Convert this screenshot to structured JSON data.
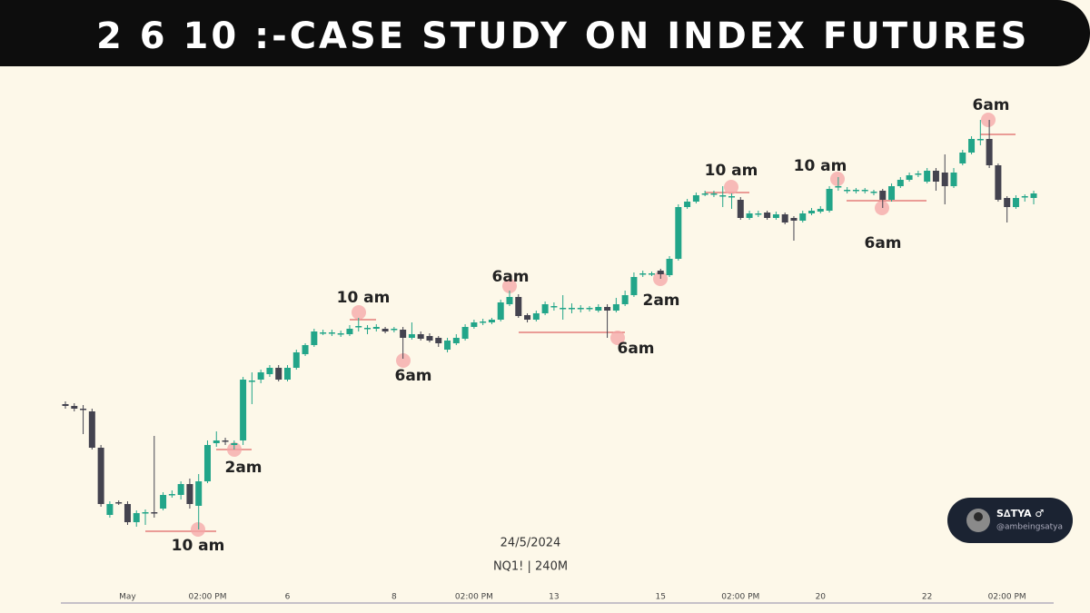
{
  "header": {
    "title": "2 6 10 :-CASE STUDY ON INDEX FUTURES"
  },
  "badge": {
    "name": "S∆TYA ♂",
    "handle": "@ambeingsatya"
  },
  "chart_data": {
    "type": "candlestick",
    "date": "24/5/2024",
    "symbol": "NQ1! | 240M",
    "up_color": "#22a589",
    "down_color": "#44434f",
    "ylim": [
      0,
      600
    ],
    "annotations": [
      "10 am",
      "2am",
      "10 am",
      "6am",
      "6am",
      "6am",
      "2am",
      "10 am",
      "10 am",
      "6am",
      "6am"
    ],
    "categories": [
      null,
      null,
      null,
      null,
      null,
      null,
      null,
      "May",
      null,
      null,
      null,
      null,
      null,
      null,
      null,
      null,
      "02:00 PM",
      null,
      null,
      null,
      null,
      null,
      null,
      null,
      null,
      "6",
      null,
      null,
      null,
      null,
      null,
      null,
      null,
      null,
      null,
      null,
      null,
      "8",
      null,
      null,
      null,
      null,
      null,
      null,
      null,
      null,
      "02:00 PM",
      null,
      null,
      null,
      null,
      null,
      null,
      null,
      null,
      "13",
      null,
      null,
      null,
      null,
      null,
      null,
      null,
      null,
      null,
      null,
      null,
      "15",
      null,
      null,
      null,
      null,
      null,
      null,
      null,
      null,
      "02:00 PM",
      null,
      null,
      null,
      null,
      null,
      null,
      null,
      null,
      "20",
      null,
      null,
      null,
      null,
      null,
      null,
      null,
      null,
      null,
      null,
      null,
      "22",
      null,
      null,
      null,
      null,
      null,
      null,
      null,
      null,
      "02:00 PM",
      null,
      null,
      null
    ],
    "ohlc": [
      [
        205,
        208,
        200,
        203
      ],
      [
        203,
        206,
        197,
        200
      ],
      [
        200,
        204,
        172,
        199
      ],
      [
        197,
        200,
        155,
        157
      ],
      [
        157,
        160,
        92,
        95
      ],
      [
        83,
        98,
        80,
        95
      ],
      [
        97,
        99,
        94,
        96
      ],
      [
        95,
        98,
        72,
        75
      ],
      [
        75,
        88,
        70,
        85
      ],
      [
        85,
        89,
        72,
        86
      ],
      [
        86,
        170,
        80,
        85
      ],
      [
        90,
        108,
        88,
        105
      ],
      [
        105,
        110,
        102,
        106
      ],
      [
        105,
        120,
        100,
        117
      ],
      [
        117,
        123,
        90,
        95
      ],
      [
        93,
        128,
        67,
        120
      ],
      [
        120,
        165,
        118,
        160
      ],
      [
        162,
        175,
        158,
        165
      ],
      [
        165,
        168,
        160,
        164
      ],
      [
        160,
        165,
        155,
        162
      ],
      [
        165,
        235,
        160,
        232
      ],
      [
        230,
        240,
        205,
        231
      ],
      [
        232,
        243,
        228,
        240
      ],
      [
        238,
        248,
        235,
        245
      ],
      [
        245,
        248,
        230,
        232
      ],
      [
        232,
        248,
        230,
        245
      ],
      [
        245,
        265,
        243,
        262
      ],
      [
        260,
        272,
        258,
        270
      ],
      [
        270,
        288,
        268,
        285
      ],
      [
        283,
        287,
        281,
        284
      ],
      [
        283,
        287,
        280,
        284
      ],
      [
        282,
        286,
        279,
        283
      ],
      [
        282,
        292,
        280,
        288
      ],
      [
        290,
        300,
        285,
        291
      ],
      [
        288,
        292,
        282,
        289
      ],
      [
        288,
        293,
        285,
        290
      ],
      [
        288,
        290,
        283,
        285
      ],
      [
        287,
        290,
        284,
        288
      ],
      [
        287,
        290,
        255,
        278
      ],
      [
        278,
        295,
        276,
        282
      ],
      [
        282,
        285,
        275,
        277
      ],
      [
        280,
        283,
        273,
        275
      ],
      [
        278,
        280,
        268,
        272
      ],
      [
        265,
        278,
        262,
        275
      ],
      [
        272,
        282,
        270,
        278
      ],
      [
        277,
        293,
        275,
        290
      ],
      [
        290,
        298,
        288,
        295
      ],
      [
        295,
        299,
        292,
        296
      ],
      [
        295,
        300,
        293,
        298
      ],
      [
        298,
        320,
        296,
        317
      ],
      [
        315,
        330,
        313,
        323
      ],
      [
        323,
        326,
        300,
        302
      ],
      [
        303,
        305,
        295,
        298
      ],
      [
        298,
        308,
        296,
        305
      ],
      [
        305,
        318,
        303,
        315
      ],
      [
        312,
        317,
        308,
        313
      ],
      [
        310,
        325,
        298,
        311
      ],
      [
        310,
        316,
        305,
        311
      ],
      [
        310,
        314,
        306,
        311
      ],
      [
        310,
        313,
        307,
        311
      ],
      [
        308,
        315,
        306,
        312
      ],
      [
        312,
        315,
        278,
        308
      ],
      [
        308,
        322,
        306,
        315
      ],
      [
        315,
        330,
        313,
        325
      ],
      [
        325,
        350,
        323,
        345
      ],
      [
        348,
        352,
        345,
        349
      ],
      [
        348,
        351,
        346,
        349
      ],
      [
        352,
        354,
        343,
        348
      ],
      [
        347,
        368,
        345,
        365
      ],
      [
        365,
        425,
        363,
        422
      ],
      [
        422,
        431,
        420,
        428
      ],
      [
        428,
        438,
        426,
        435
      ],
      [
        436,
        440,
        434,
        437
      ],
      [
        436,
        440,
        433,
        437
      ],
      [
        434,
        445,
        422,
        435
      ],
      [
        433,
        437,
        420,
        434
      ],
      [
        430,
        433,
        408,
        410
      ],
      [
        410,
        418,
        408,
        415
      ],
      [
        414,
        418,
        411,
        415
      ],
      [
        416,
        418,
        408,
        410
      ],
      [
        410,
        417,
        408,
        414
      ],
      [
        414,
        416,
        403,
        405
      ],
      [
        410,
        412,
        385,
        407
      ],
      [
        407,
        418,
        405,
        415
      ],
      [
        415,
        421,
        413,
        418
      ],
      [
        417,
        423,
        415,
        420
      ],
      [
        418,
        445,
        416,
        442
      ],
      [
        444,
        455,
        440,
        445
      ],
      [
        440,
        444,
        437,
        441
      ],
      [
        440,
        443,
        437,
        441
      ],
      [
        440,
        443,
        437,
        441
      ],
      [
        438,
        441,
        435,
        439
      ],
      [
        440,
        442,
        421,
        430
      ],
      [
        430,
        448,
        428,
        445
      ],
      [
        445,
        455,
        443,
        452
      ],
      [
        452,
        460,
        450,
        457
      ],
      [
        458,
        462,
        455,
        459
      ],
      [
        450,
        465,
        448,
        462
      ],
      [
        462,
        465,
        440,
        450
      ],
      [
        460,
        480,
        425,
        445
      ],
      [
        445,
        465,
        443,
        460
      ],
      [
        470,
        485,
        468,
        482
      ],
      [
        482,
        500,
        480,
        497
      ],
      [
        496,
        518,
        490,
        497
      ],
      [
        497,
        518,
        465,
        468
      ],
      [
        468,
        470,
        428,
        430
      ],
      [
        432,
        434,
        405,
        422
      ],
      [
        422,
        435,
        420,
        432
      ],
      [
        433,
        436,
        428,
        434
      ],
      [
        432,
        440,
        425,
        437
      ]
    ]
  }
}
